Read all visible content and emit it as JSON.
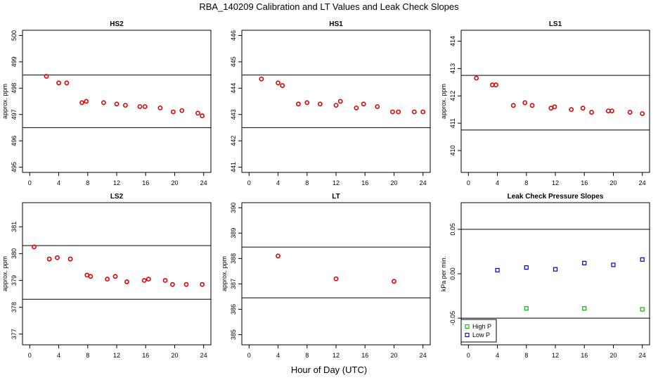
{
  "title": "RBA_140209  Calibration and LT Values and Leak Check Slopes",
  "xlabel": "Hour of Day (UTC)",
  "chart_data": [
    {
      "type": "scatter",
      "title": "HS2",
      "ylabel": "approx. ppm",
      "xlim": [
        -1,
        25
      ],
      "ylim": [
        494.8,
        500.2
      ],
      "xticks": [
        0,
        4,
        8,
        12,
        16,
        20,
        24
      ],
      "xtick_labels": [
        "0",
        "4",
        "8",
        "12",
        "16",
        "20",
        "24"
      ],
      "yticks": [
        495,
        496,
        497,
        498,
        499,
        500
      ],
      "ytick_labels": [
        "495",
        "496",
        "497",
        "498",
        "499",
        "500"
      ],
      "hlines": [
        498.5,
        496.5
      ],
      "series": [
        {
          "color": "#e00000",
          "marker": "circle",
          "x": [
            2.3,
            4.0,
            5.1,
            7.2,
            7.8,
            10.2,
            12.0,
            13.2,
            15.2,
            15.9,
            18.0,
            19.8,
            21.0,
            23.2,
            23.8
          ],
          "y": [
            498.45,
            498.2,
            498.2,
            497.45,
            497.5,
            497.45,
            497.4,
            497.35,
            497.3,
            497.3,
            497.25,
            497.1,
            497.15,
            497.05,
            496.95
          ]
        }
      ]
    },
    {
      "type": "scatter",
      "title": "HS1",
      "ylabel": "",
      "xlim": [
        -1,
        25
      ],
      "ylim": [
        440.8,
        446.2
      ],
      "xticks": [
        0,
        4,
        8,
        12,
        16,
        20,
        24
      ],
      "xtick_labels": [
        "0",
        "4",
        "8",
        "12",
        "16",
        "20",
        "24"
      ],
      "yticks": [
        441,
        442,
        443,
        444,
        445,
        446
      ],
      "ytick_labels": [
        "441",
        "442",
        "443",
        "444",
        "445",
        "446"
      ],
      "hlines": [
        444.5,
        442.5
      ],
      "series": [
        {
          "color": "#e00000",
          "marker": "circle",
          "x": [
            1.7,
            4.0,
            4.6,
            6.8,
            8.0,
            9.8,
            12.0,
            12.6,
            14.8,
            15.8,
            17.7,
            19.8,
            20.6,
            22.8,
            24.0
          ],
          "y": [
            444.35,
            444.2,
            444.1,
            443.4,
            443.45,
            443.4,
            443.35,
            443.5,
            443.25,
            443.4,
            443.3,
            443.1,
            443.1,
            443.1,
            443.1
          ]
        }
      ]
    },
    {
      "type": "scatter",
      "title": "LS1",
      "ylabel": "approx. ppm",
      "xlim": [
        -1,
        25
      ],
      "ylim": [
        409.2,
        414.4
      ],
      "xticks": [
        0,
        4,
        8,
        12,
        16,
        20,
        24
      ],
      "xtick_labels": [
        "0",
        "4",
        "8",
        "12",
        "16",
        "20",
        "24"
      ],
      "yticks": [
        410,
        411,
        412,
        413,
        414
      ],
      "ytick_labels": [
        "410",
        "411",
        "412",
        "413",
        "414"
      ],
      "hlines": [
        412.75,
        410.75
      ],
      "series": [
        {
          "color": "#e00000",
          "marker": "circle",
          "x": [
            1.1,
            3.3,
            3.8,
            6.2,
            7.8,
            8.8,
            11.4,
            11.9,
            14.2,
            15.8,
            17.0,
            19.3,
            19.8,
            22.3,
            24.0
          ],
          "y": [
            412.65,
            412.4,
            412.4,
            411.65,
            411.75,
            411.65,
            411.55,
            411.6,
            411.5,
            411.55,
            411.4,
            411.45,
            411.45,
            411.4,
            411.35
          ]
        }
      ]
    },
    {
      "type": "scatter",
      "title": "LS2",
      "ylabel": "approx. ppm",
      "xlim": [
        -1,
        25
      ],
      "ylim": [
        376.6,
        381.9
      ],
      "xticks": [
        0,
        4,
        8,
        12,
        16,
        20,
        24
      ],
      "xtick_labels": [
        "0",
        "4",
        "8",
        "12",
        "16",
        "20",
        "24"
      ],
      "yticks": [
        377,
        378,
        379,
        380,
        381
      ],
      "ytick_labels": [
        "377",
        "378",
        "379",
        "380",
        "381"
      ],
      "hlines": [
        380.3,
        378.3
      ],
      "series": [
        {
          "color": "#e00000",
          "marker": "circle",
          "x": [
            0.6,
            2.7,
            3.8,
            5.6,
            7.9,
            8.4,
            10.7,
            11.8,
            13.4,
            15.8,
            16.4,
            18.7,
            19.7,
            21.6,
            23.8
          ],
          "y": [
            380.25,
            379.8,
            379.85,
            379.8,
            379.2,
            379.15,
            379.05,
            379.15,
            378.95,
            379.0,
            379.05,
            379.0,
            378.85,
            378.85,
            378.85
          ]
        }
      ]
    },
    {
      "type": "scatter",
      "title": "LT",
      "ylabel": "approx. ppm",
      "xlim": [
        -1,
        25
      ],
      "ylim": [
        384.6,
        390.2
      ],
      "xticks": [
        0,
        4,
        8,
        12,
        16,
        20,
        24
      ],
      "xtick_labels": [
        "0",
        "4",
        "8",
        "12",
        "16",
        "20",
        "24"
      ],
      "yticks": [
        385,
        386,
        387,
        388,
        389,
        390
      ],
      "ytick_labels": [
        "385",
        "386",
        "387",
        "388",
        "389",
        "390"
      ],
      "hlines": [
        388.45,
        386.45
      ],
      "series": [
        {
          "color": "#e00000",
          "marker": "circle",
          "x": [
            4.0,
            12.0,
            20.0
          ],
          "y": [
            388.1,
            387.2,
            387.1
          ]
        }
      ]
    },
    {
      "type": "scatter",
      "title": "Leak Check Pressure Slopes",
      "ylabel": "kPa per min.",
      "xlim": [
        -1,
        25
      ],
      "ylim": [
        -0.08,
        0.08
      ],
      "xticks": [
        0,
        4,
        8,
        12,
        16,
        20,
        24
      ],
      "xtick_labels": [
        "0",
        "4",
        "8",
        "12",
        "16",
        "20",
        "24"
      ],
      "yticks": [
        -0.05,
        0.0,
        0.05
      ],
      "ytick_labels": [
        "-0.05",
        "0.00",
        "0.05"
      ],
      "hlines": [
        0.05,
        -0.05
      ],
      "legend": "bottom-left",
      "series": [
        {
          "name": "High P",
          "color": "#00bb00",
          "marker": "square",
          "x": [
            8.0,
            16.0,
            24.0
          ],
          "y": [
            -0.039,
            -0.039,
            -0.04
          ]
        },
        {
          "name": "Low P",
          "color": "#0000cc",
          "marker": "square",
          "x": [
            4.0,
            8.0,
            12.0,
            16.0,
            20.0,
            24.0
          ],
          "y": [
            0.004,
            0.007,
            0.005,
            0.012,
            0.01,
            0.016
          ]
        }
      ]
    }
  ]
}
